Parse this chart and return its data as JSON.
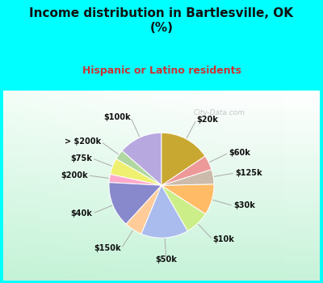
{
  "title": "Income distribution in Bartlesville, OK\n(%)",
  "subtitle": "Hispanic or Latino residents",
  "title_fontsize": 11,
  "subtitle_fontsize": 9,
  "labels": [
    "$100k",
    "> $200k",
    "$75k",
    "$200k",
    "$40k",
    "$150k",
    "$50k",
    "$10k",
    "$30k",
    "$125k",
    "$60k",
    "$20k"
  ],
  "sizes": [
    13.5,
    3.0,
    5.0,
    2.5,
    14.0,
    5.5,
    14.5,
    7.5,
    9.5,
    4.5,
    4.5,
    15.5
  ],
  "colors": [
    "#b8a8e0",
    "#b0d8a0",
    "#f0f070",
    "#ffaacc",
    "#8888cc",
    "#ffcc99",
    "#aabbee",
    "#ccee88",
    "#ffbb66",
    "#ccbbaa",
    "#ee9999",
    "#c8a830"
  ],
  "background_top": "#00ffff",
  "startangle": 90,
  "watermark": "City-Data.com"
}
